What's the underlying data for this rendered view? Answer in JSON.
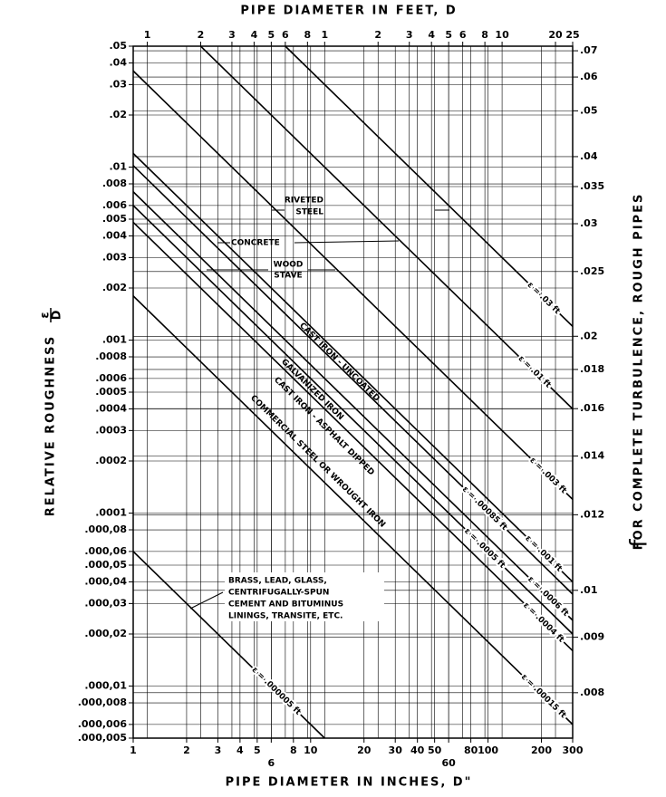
{
  "chart_data": {
    "type": "line",
    "x2label": "PIPE DIAMETER IN FEET, D",
    "xlabel": "PIPE DIAMETER IN INCHES, D\"",
    "ylabel": "RELATIVE ROUGHNESS",
    "ylabel_symbol": [
      "ε",
      "D"
    ],
    "y2label": "FOR COMPLETE TURBULENCE, ROUGH PIPES",
    "y2label_symbol": "f",
    "xscale": "log",
    "x2scale": "log",
    "yscale": "log",
    "y2scale": "inverse-sqrt",
    "grid": true,
    "xlim": [
      1,
      300
    ],
    "xticks": [
      1,
      2,
      3,
      4,
      5,
      6,
      8,
      10,
      20,
      30,
      40,
      50,
      60,
      80,
      100,
      200,
      300
    ],
    "x2lim": [
      0.0833,
      25
    ],
    "x2ticks": [
      {
        "value": 0.1,
        "label": "1"
      },
      {
        "value": 0.2,
        "label": "2"
      },
      {
        "value": 0.3,
        "label": "3"
      },
      {
        "value": 0.4,
        "label": "4"
      },
      {
        "value": 0.5,
        "label": "5"
      },
      {
        "value": 0.6,
        "label": "6"
      },
      {
        "value": 0.8,
        "label": "8"
      },
      1,
      2,
      3,
      4,
      5,
      6,
      8,
      10,
      20,
      25
    ],
    "ylim": [
      5e-06,
      0.05
    ],
    "yticks": [
      {
        "value": 0.05,
        "label": ".05"
      },
      {
        "value": 0.04,
        "label": ".04"
      },
      {
        "value": 0.03,
        "label": ".03"
      },
      {
        "value": 0.02,
        "label": ".02"
      },
      {
        "value": 0.01,
        "label": ".01"
      },
      {
        "value": 0.008,
        "label": ".008"
      },
      {
        "value": 0.006,
        "label": ".006"
      },
      {
        "value": 0.005,
        "label": ".005"
      },
      {
        "value": 0.004,
        "label": ".004"
      },
      {
        "value": 0.003,
        "label": ".003"
      },
      {
        "value": 0.002,
        "label": ".002"
      },
      {
        "value": 0.001,
        "label": ".001"
      },
      {
        "value": 0.0008,
        "label": ".0008"
      },
      {
        "value": 0.0006,
        "label": ".0006"
      },
      {
        "value": 0.0005,
        "label": ".0005"
      },
      {
        "value": 0.0004,
        "label": ".0004"
      },
      {
        "value": 0.0003,
        "label": ".0003"
      },
      {
        "value": 0.0002,
        "label": ".0002"
      },
      {
        "value": 0.0001,
        "label": ".0001"
      },
      {
        "value": 8e-05,
        "label": ".000,08"
      },
      {
        "value": 6e-05,
        "label": ".000,06"
      },
      {
        "value": 5e-05,
        "label": ".000,05"
      },
      {
        "value": 4e-05,
        "label": ".000,04"
      },
      {
        "value": 3e-05,
        "label": ".000,03"
      },
      {
        "value": 2e-05,
        "label": ".000,02"
      },
      {
        "value": 1e-05,
        "label": ".000,01"
      },
      {
        "value": 8e-06,
        "label": ".000,008"
      },
      {
        "value": 6e-06,
        "label": ".000,006"
      },
      {
        "value": 5e-06,
        "label": ".000,005"
      }
    ],
    "y2lim": [
      0.0073,
      0.072
    ],
    "y2ticks": [
      {
        "value": 0.07,
        "label": ".07"
      },
      {
        "value": 0.06,
        "label": ".06"
      },
      {
        "value": 0.05,
        "label": ".05"
      },
      {
        "value": 0.04,
        "label": ".04"
      },
      {
        "value": 0.035,
        "label": ".035"
      },
      {
        "value": 0.03,
        "label": ".03"
      },
      {
        "value": 0.025,
        "label": ".025"
      },
      {
        "value": 0.02,
        "label": ".02"
      },
      {
        "value": 0.018,
        "label": ".018"
      },
      {
        "value": 0.016,
        "label": ".016"
      },
      {
        "value": 0.014,
        "label": ".014"
      },
      {
        "value": 0.012,
        "label": ".012"
      },
      {
        "value": 0.01,
        "label": ".01"
      },
      {
        "value": 0.009,
        "label": ".009"
      },
      {
        "value": 0.008,
        "label": ".008"
      }
    ],
    "series": [
      {
        "name": "ε = .03 ft",
        "color": "#000000",
        "x": [
          7.2,
          300
        ],
        "values": [
          0.05,
          0.0012
        ]
      },
      {
        "name": "ε = .01 ft",
        "color": "#000000",
        "x": [
          2.4,
          300
        ],
        "values": [
          0.05,
          0.0004
        ]
      },
      {
        "name": "ε = .003 ft",
        "color": "#000000",
        "x": [
          1,
          300
        ],
        "values": [
          0.036,
          0.00012
        ]
      },
      {
        "name": "ε = .001 ft",
        "color": "#000000",
        "x": [
          1,
          300
        ],
        "values": [
          0.012,
          4e-05
        ]
      },
      {
        "name": "ε = .00085 ft",
        "color": "#000000",
        "x": [
          1,
          300
        ],
        "values": [
          0.0102,
          3.4e-05
        ]
      },
      {
        "name": "ε = .0006 ft",
        "color": "#000000",
        "x": [
          1,
          300
        ],
        "values": [
          0.0072,
          2.4e-05
        ]
      },
      {
        "name": "ε = .0005 ft",
        "color": "#000000",
        "x": [
          1,
          300
        ],
        "values": [
          0.006,
          2e-05
        ]
      },
      {
        "name": "ε = .0004 ft",
        "color": "#000000",
        "x": [
          1,
          300
        ],
        "values": [
          0.0048,
          1.6e-05
        ]
      },
      {
        "name": "ε = .00015 ft",
        "color": "#000000",
        "x": [
          1,
          300
        ],
        "values": [
          0.0018,
          6e-06
        ]
      },
      {
        "name": "ε = .000005 ft",
        "color": "#000000",
        "x": [
          1,
          12
        ],
        "values": [
          6e-05,
          5e-06
        ]
      }
    ],
    "annotations": [
      [
        "RIVETED",
        "STEEL"
      ],
      [
        "CONCRETE"
      ],
      [
        "WOOD",
        "STAVE"
      ],
      [
        "CAST IRON - UNCOATED"
      ],
      [
        "GALVANIZED IRON"
      ],
      [
        "CAST IRON - ASPHALT DIPPED"
      ],
      [
        "COMMERCIAL STEEL OR WROUGHT IRON"
      ],
      [
        "BRASS, LEAD, GLASS,",
        "CENTRIFUGALLY-SPUN",
        "CEMENT AND BITUMINUS",
        "LININGS, TRANSITE, ETC."
      ]
    ]
  }
}
